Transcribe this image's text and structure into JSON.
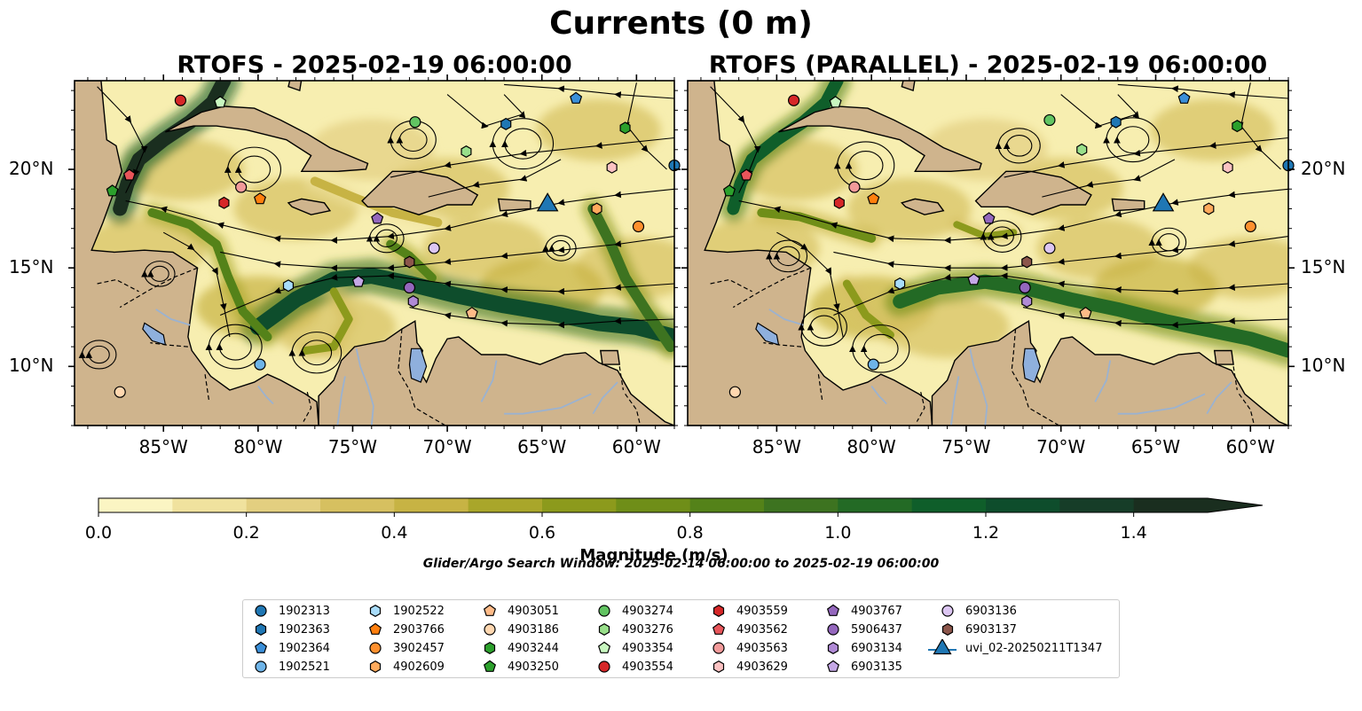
{
  "title": "Currents (0 m)",
  "panels": [
    {
      "title": "RTOFS - 2025-02-19 06:00:00"
    },
    {
      "title": "RTOFS (PARALLEL) - 2025-02-19 06:00:00"
    }
  ],
  "map": {
    "extent": {
      "lon_min": -89.7,
      "lon_max": -58.0,
      "lat_min": 7.0,
      "lat_max": 24.5
    },
    "lon_ticks": [
      {
        "value": -85,
        "label": "85°W"
      },
      {
        "value": -80,
        "label": "80°W"
      },
      {
        "value": -75,
        "label": "75°W"
      },
      {
        "value": -70,
        "label": "70°W"
      },
      {
        "value": -65,
        "label": "65°W"
      },
      {
        "value": -60,
        "label": "60°W"
      }
    ],
    "lat_ticks": [
      {
        "value": 10,
        "label": "10°N"
      },
      {
        "value": 15,
        "label": "15°N"
      },
      {
        "value": 20,
        "label": "20°N"
      }
    ],
    "colors": {
      "ocean_low": "#f7eeb0",
      "land": "#cfb48d",
      "lake": "#8fb0dd",
      "river": "#9bb2d0",
      "strong_current": "#3b6e1e"
    }
  },
  "colorbar": {
    "label": "Magnitude (m/s)",
    "ticks": [
      "0.0",
      "0.2",
      "0.4",
      "0.6",
      "0.8",
      "1.0",
      "1.2",
      "1.4"
    ],
    "levels": [
      0.0,
      0.1,
      0.2,
      0.3,
      0.4,
      0.5,
      0.6,
      0.7,
      0.8,
      0.9,
      1.0,
      1.1,
      1.2,
      1.3,
      1.4,
      1.5
    ],
    "colors": [
      "#fbf5c3",
      "#f0e29e",
      "#e3cf80",
      "#d6c060",
      "#c7b344",
      "#a9a62a",
      "#8c9a1c",
      "#6f8e18",
      "#548219",
      "#3d7320",
      "#236a25",
      "#0f5e2a",
      "#0e4d2c",
      "#163d28",
      "#1a2e1f"
    ]
  },
  "search_window": "Glider/Argo Search Window: 2025-02-14 06:00:00 to 2025-02-19 06:00:00",
  "legend": [
    {
      "label": "1902313",
      "marker": "circle",
      "color": "#1f77b4"
    },
    {
      "label": "1902363",
      "marker": "hexagon",
      "color": "#1f77b4"
    },
    {
      "label": "1902364",
      "marker": "pentagon",
      "color": "#3a8fd9"
    },
    {
      "label": "1902521",
      "marker": "circle",
      "color": "#6eb4e8"
    },
    {
      "label": "1902522",
      "marker": "hexagon",
      "color": "#a8dcfa"
    },
    {
      "label": "2903766",
      "marker": "pentagon",
      "color": "#ff7f0e"
    },
    {
      "label": "3902457",
      "marker": "circle",
      "color": "#ff902e"
    },
    {
      "label": "4902609",
      "marker": "hexagon",
      "color": "#ffaa5c"
    },
    {
      "label": "4903051",
      "marker": "pentagon",
      "color": "#ffbb88"
    },
    {
      "label": "4903186",
      "marker": "circle",
      "color": "#ffd7b0"
    },
    {
      "label": "4903244",
      "marker": "hexagon",
      "color": "#2ca02c"
    },
    {
      "label": "4903250",
      "marker": "pentagon",
      "color": "#2ca02c"
    },
    {
      "label": "4903274",
      "marker": "circle",
      "color": "#62c462"
    },
    {
      "label": "4903276",
      "marker": "hexagon",
      "color": "#98df8a"
    },
    {
      "label": "4903354",
      "marker": "pentagon",
      "color": "#c8f7c0"
    },
    {
      "label": "4903554",
      "marker": "circle",
      "color": "#d62728"
    },
    {
      "label": "4903559",
      "marker": "hexagon",
      "color": "#d62728"
    },
    {
      "label": "4903562",
      "marker": "pentagon",
      "color": "#e8555a"
    },
    {
      "label": "4903563",
      "marker": "circle",
      "color": "#f29a9a"
    },
    {
      "label": "4903629",
      "marker": "hexagon",
      "color": "#fbc2c2"
    },
    {
      "label": "4903767",
      "marker": "pentagon",
      "color": "#9467bd"
    },
    {
      "label": "5906437",
      "marker": "circle",
      "color": "#9467bd"
    },
    {
      "label": "6903134",
      "marker": "hexagon",
      "color": "#b08ad6"
    },
    {
      "label": "6903135",
      "marker": "pentagon",
      "color": "#c5a8e6"
    },
    {
      "label": "6903136",
      "marker": "circle",
      "color": "#dcc6f2"
    },
    {
      "label": "6903137",
      "marker": "hexagon",
      "color": "#8c564b"
    },
    {
      "label": "uvi_02-20250211T1347",
      "marker": "triangle",
      "color": "#1f77b4"
    }
  ],
  "observations_left": [
    {
      "id": "4903554",
      "lon": -84.1,
      "lat": 23.5
    },
    {
      "id": "4903354",
      "lon": -82.0,
      "lat": 23.4
    },
    {
      "id": "4903274",
      "lon": -71.7,
      "lat": 22.4
    },
    {
      "id": "1902363",
      "lon": -66.9,
      "lat": 22.3
    },
    {
      "id": "1902364",
      "lon": -63.2,
      "lat": 23.6
    },
    {
      "id": "4903244",
      "lon": -60.6,
      "lat": 22.1
    },
    {
      "id": "4903276",
      "lon": -69.0,
      "lat": 20.9
    },
    {
      "id": "4903629",
      "lon": -61.3,
      "lat": 20.1
    },
    {
      "id": "1902313",
      "lon": -58.0,
      "lat": 20.2
    },
    {
      "id": "4903562",
      "lon": -86.8,
      "lat": 19.7
    },
    {
      "id": "4903250",
      "lon": -87.7,
      "lat": 18.9
    },
    {
      "id": "4903563",
      "lon": -80.9,
      "lat": 19.1
    },
    {
      "id": "2903766",
      "lon": -79.9,
      "lat": 18.5
    },
    {
      "id": "4903559",
      "lon": -81.8,
      "lat": 18.3
    },
    {
      "id": "4903767",
      "lon": -73.7,
      "lat": 17.5
    },
    {
      "id": "4902609",
      "lon": -62.1,
      "lat": 18.0
    },
    {
      "id": "3902457",
      "lon": -59.9,
      "lat": 17.1
    },
    {
      "id": "6903136",
      "lon": -70.7,
      "lat": 16.0
    },
    {
      "id": "6903137",
      "lon": -72.0,
      "lat": 15.3
    },
    {
      "id": "1902522",
      "lon": -78.4,
      "lat": 14.1
    },
    {
      "id": "6903135",
      "lon": -74.7,
      "lat": 14.3
    },
    {
      "id": "5906437",
      "lon": -72.0,
      "lat": 14.0
    },
    {
      "id": "6903134",
      "lon": -71.8,
      "lat": 13.3
    },
    {
      "id": "4903051",
      "lon": -68.7,
      "lat": 12.7
    },
    {
      "id": "1902521",
      "lon": -79.9,
      "lat": 10.1
    },
    {
      "id": "4903186",
      "lon": -87.3,
      "lat": 8.7
    },
    {
      "id": "uvi_02-20250211T1347",
      "lon": -64.7,
      "lat": 18.1
    }
  ],
  "observations_right": [
    {
      "id": "4903554",
      "lon": -84.1,
      "lat": 23.5
    },
    {
      "id": "4903354",
      "lon": -81.9,
      "lat": 23.4
    },
    {
      "id": "4903274",
      "lon": -70.6,
      "lat": 22.5
    },
    {
      "id": "1902363",
      "lon": -67.1,
      "lat": 22.4
    },
    {
      "id": "1902364",
      "lon": -63.5,
      "lat": 23.6
    },
    {
      "id": "4903244",
      "lon": -60.7,
      "lat": 22.2
    },
    {
      "id": "4903276",
      "lon": -68.9,
      "lat": 21.0
    },
    {
      "id": "4903629",
      "lon": -61.2,
      "lat": 20.1
    },
    {
      "id": "1902313",
      "lon": -58.0,
      "lat": 20.2
    },
    {
      "id": "4903562",
      "lon": -86.6,
      "lat": 19.7
    },
    {
      "id": "4903250",
      "lon": -87.5,
      "lat": 18.9
    },
    {
      "id": "4903563",
      "lon": -80.9,
      "lat": 19.1
    },
    {
      "id": "2903766",
      "lon": -79.9,
      "lat": 18.5
    },
    {
      "id": "4903559",
      "lon": -81.7,
      "lat": 18.3
    },
    {
      "id": "4903767",
      "lon": -73.8,
      "lat": 17.5
    },
    {
      "id": "4902609",
      "lon": -62.2,
      "lat": 18.0
    },
    {
      "id": "3902457",
      "lon": -60.0,
      "lat": 17.1
    },
    {
      "id": "6903136",
      "lon": -70.6,
      "lat": 16.0
    },
    {
      "id": "6903137",
      "lon": -71.8,
      "lat": 15.3
    },
    {
      "id": "1902522",
      "lon": -78.5,
      "lat": 14.2
    },
    {
      "id": "6903135",
      "lon": -74.6,
      "lat": 14.4
    },
    {
      "id": "5906437",
      "lon": -71.9,
      "lat": 14.0
    },
    {
      "id": "6903134",
      "lon": -71.8,
      "lat": 13.3
    },
    {
      "id": "4903051",
      "lon": -68.7,
      "lat": 12.7
    },
    {
      "id": "1902521",
      "lon": -79.9,
      "lat": 10.1
    },
    {
      "id": "4903186",
      "lon": -87.2,
      "lat": 8.7
    },
    {
      "id": "uvi_02-20250211T1347",
      "lon": -64.6,
      "lat": 18.1
    }
  ]
}
